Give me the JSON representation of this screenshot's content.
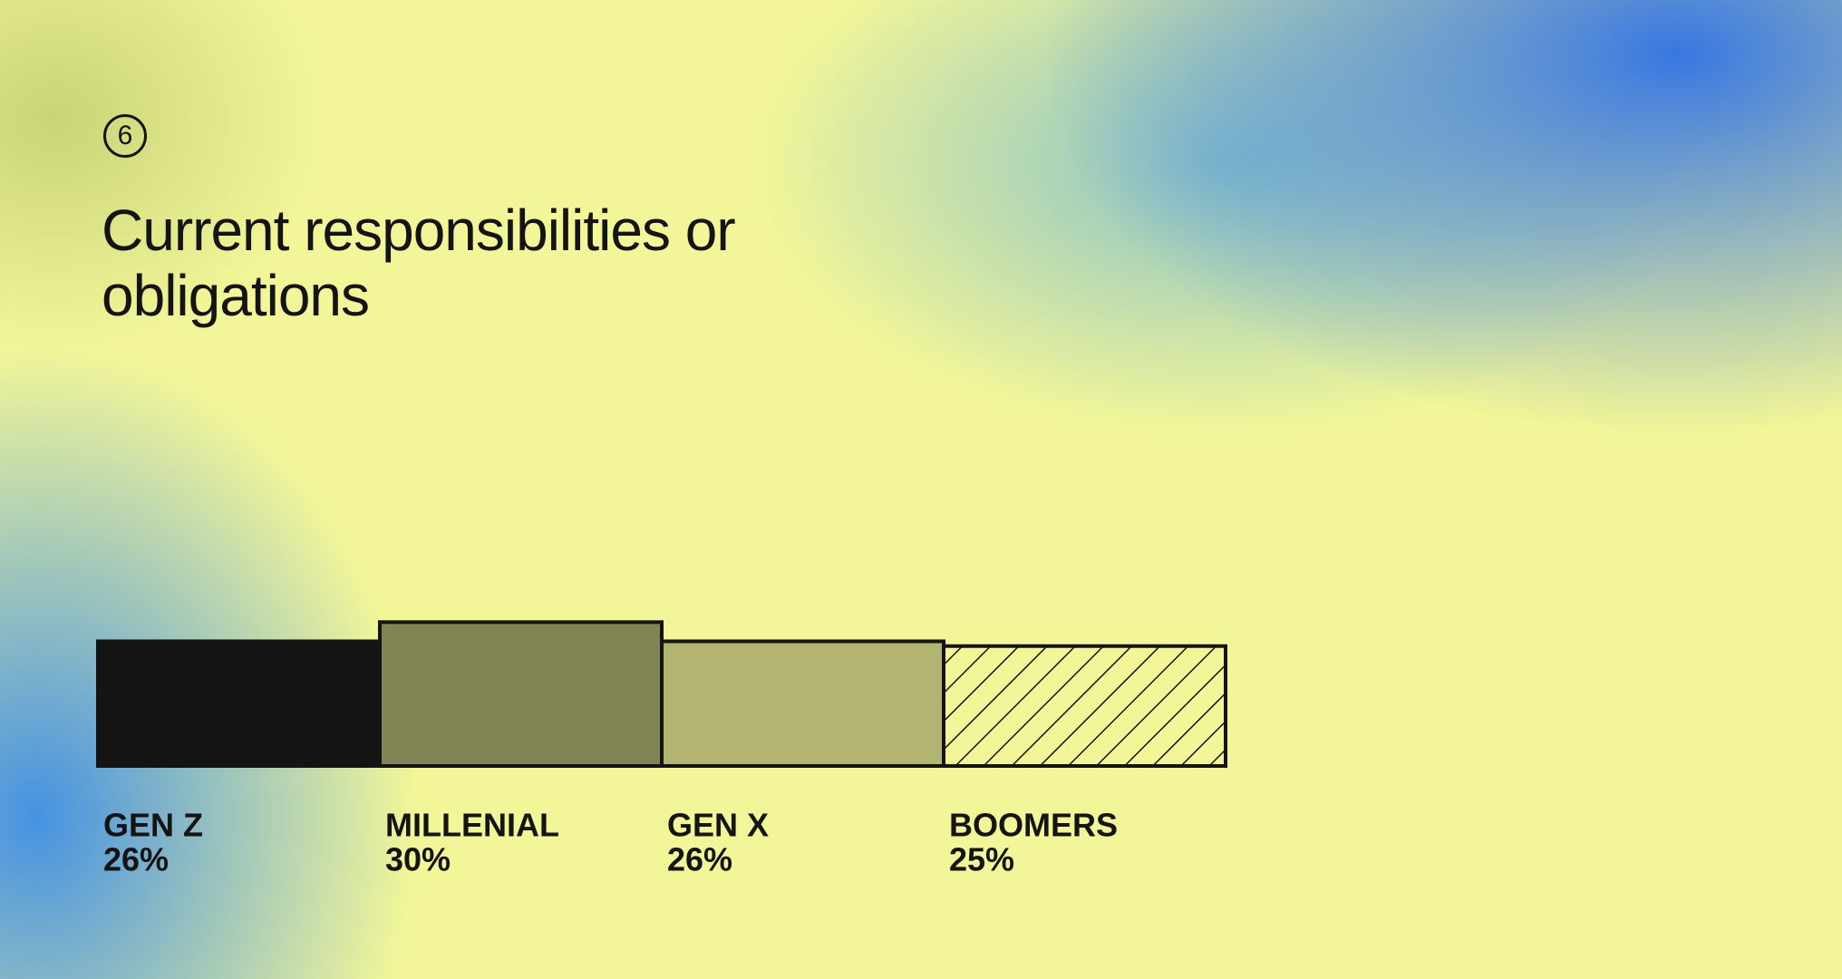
{
  "slide_number": "6",
  "chart_data": {
    "type": "bar",
    "title": "Current responsibilities or obligations",
    "categories": [
      "GEN Z",
      "MILLENIAL",
      "GEN X",
      "BOOMERS"
    ],
    "values": [
      26,
      30,
      26,
      25
    ],
    "value_labels": [
      "26%",
      "30%",
      "26%",
      "25%"
    ],
    "fills": [
      "#141414",
      "#838455",
      "#b3b470",
      "hatch"
    ]
  }
}
